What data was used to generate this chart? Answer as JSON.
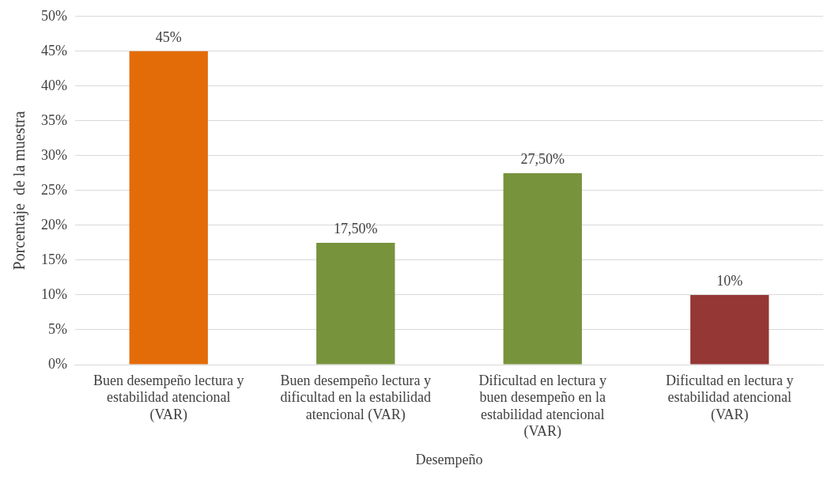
{
  "chart_data": {
    "type": "bar",
    "xlabel": "Desempeño",
    "ylabel": "Porcentaje  de la muestra",
    "categories": [
      "Buen desempeño lectura y estabilidad atencional (VAR)",
      "Buen desempeño lectura y dificultad en la estabilidad atencional (VAR)",
      "Dificultad en lectura y buen desempeño en la estabilidad atencional (VAR)",
      "Dificultad en lectura y estabilidad atencional (VAR)"
    ],
    "values": [
      45,
      17.5,
      27.5,
      10
    ],
    "colors": [
      "#e36c09",
      "#77933c",
      "#77933c",
      "#953735"
    ],
    "value_labels": [
      "45%",
      "17,50%",
      "27,50%",
      "10%"
    ],
    "ylim": [
      0,
      50
    ],
    "yticks": [
      {
        "value": 0,
        "label": "0%"
      },
      {
        "value": 5,
        "label": "5%"
      },
      {
        "value": 10,
        "label": "10%"
      },
      {
        "value": 15,
        "label": "15%"
      },
      {
        "value": 20,
        "label": "20%"
      },
      {
        "value": 25,
        "label": "25%"
      },
      {
        "value": 30,
        "label": "30%"
      },
      {
        "value": 35,
        "label": "35%"
      },
      {
        "value": 40,
        "label": "40%"
      },
      {
        "value": 45,
        "label": "45%"
      },
      {
        "value": 50,
        "label": "50%"
      }
    ],
    "grid": "y",
    "legend": false
  }
}
